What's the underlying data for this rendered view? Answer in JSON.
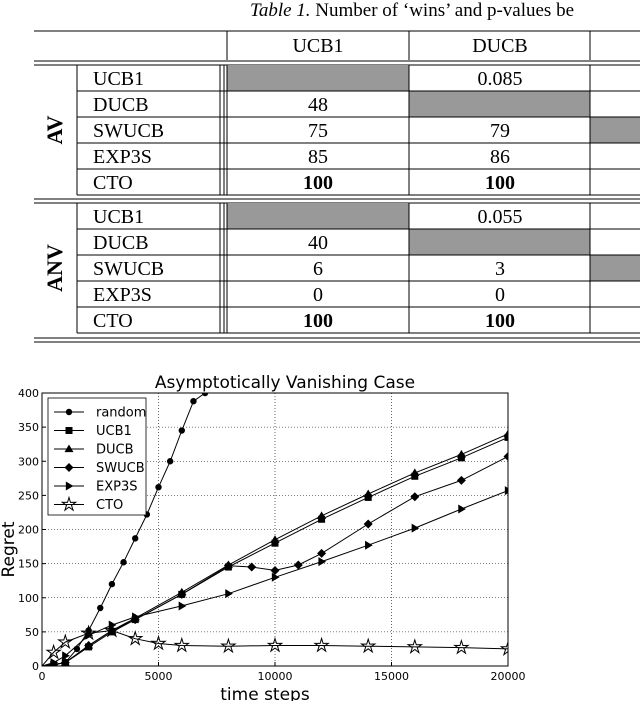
{
  "caption": {
    "label": "Table 1.",
    "text": "Number of ‘wins’ and p-values be"
  },
  "table": {
    "columns": [
      "UCB1",
      "DUCB"
    ],
    "groups": [
      {
        "name": "AV",
        "rows": [
          {
            "label": "UCB1",
            "cells": [
              {
                "shaded": true
              },
              {
                "value": "0.085"
              }
            ],
            "edge_shaded": false
          },
          {
            "label": "DUCB",
            "cells": [
              {
                "value": "48"
              },
              {
                "shaded": true
              }
            ],
            "edge_shaded": false
          },
          {
            "label": "SWUCB",
            "cells": [
              {
                "value": "75"
              },
              {
                "value": "79"
              }
            ],
            "edge_shaded": true
          },
          {
            "label": "EXP3S",
            "cells": [
              {
                "value": "85"
              },
              {
                "value": "86"
              }
            ],
            "edge_shaded": false
          },
          {
            "label": "CTO",
            "cells": [
              {
                "value": "100",
                "bold": true
              },
              {
                "value": "100",
                "bold": true
              }
            ],
            "edge_shaded": false
          }
        ]
      },
      {
        "name": "ANV",
        "rows": [
          {
            "label": "UCB1",
            "cells": [
              {
                "shaded": true
              },
              {
                "value": "0.055"
              }
            ],
            "edge_shaded": false
          },
          {
            "label": "DUCB",
            "cells": [
              {
                "value": "40"
              },
              {
                "shaded": true
              }
            ],
            "edge_shaded": false
          },
          {
            "label": "SWUCB",
            "cells": [
              {
                "value": "6"
              },
              {
                "value": "3"
              }
            ],
            "edge_shaded": true
          },
          {
            "label": "EXP3S",
            "cells": [
              {
                "value": "0"
              },
              {
                "value": "0"
              }
            ],
            "edge_shaded": false
          },
          {
            "label": "CTO",
            "cells": [
              {
                "value": "100",
                "bold": true
              },
              {
                "value": "100",
                "bold": true
              }
            ],
            "edge_shaded": false
          }
        ]
      }
    ],
    "shade_color": "#999999"
  },
  "chart_data": {
    "type": "line",
    "title": "Asymptotically Vanishing Case",
    "xlabel": "time steps",
    "ylabel": "Regret",
    "xlim": [
      0,
      20000
    ],
    "ylim": [
      0,
      400
    ],
    "xticks": [
      0,
      5000,
      10000,
      15000,
      20000
    ],
    "yticks": [
      0,
      50,
      100,
      150,
      200,
      250,
      300,
      350,
      400
    ],
    "grid": true,
    "legend": "top-left",
    "series": [
      {
        "name": "random",
        "marker": "circle",
        "x": [
          0,
          500,
          1000,
          1500,
          2000,
          2500,
          3000,
          3500,
          4000,
          4500,
          5000,
          5500,
          6000,
          6500,
          7000
        ],
        "y": [
          0,
          2,
          5,
          25,
          52,
          85,
          120,
          152,
          187,
          222,
          262,
          300,
          345,
          388,
          400
        ]
      },
      {
        "name": "UCB1",
        "marker": "square",
        "x": [
          0,
          500,
          1000,
          2000,
          3000,
          4000,
          6000,
          8000,
          10000,
          12000,
          14000,
          16000,
          18000,
          20000
        ],
        "y": [
          0,
          2,
          5,
          28,
          50,
          68,
          105,
          145,
          180,
          215,
          247,
          278,
          305,
          335
        ]
      },
      {
        "name": "DUCB",
        "marker": "triangle",
        "x": [
          0,
          500,
          1000,
          2000,
          3000,
          4000,
          6000,
          8000,
          10000,
          12000,
          14000,
          16000,
          18000,
          20000
        ],
        "y": [
          0,
          2,
          5,
          30,
          52,
          70,
          108,
          148,
          185,
          220,
          252,
          283,
          310,
          340
        ]
      },
      {
        "name": "SWUCB",
        "marker": "diamond",
        "x": [
          0,
          500,
          1000,
          2000,
          3000,
          4000,
          6000,
          8000,
          9000,
          10000,
          11000,
          12000,
          14000,
          16000,
          18000,
          20000
        ],
        "y": [
          0,
          2,
          5,
          30,
          52,
          68,
          105,
          147,
          145,
          140,
          148,
          165,
          208,
          248,
          272,
          307
        ]
      },
      {
        "name": "EXP3S",
        "marker": "tri-right",
        "x": [
          0,
          500,
          1000,
          2000,
          3000,
          4000,
          6000,
          8000,
          10000,
          12000,
          14000,
          16000,
          18000,
          20000
        ],
        "y": [
          0,
          5,
          15,
          45,
          60,
          72,
          88,
          106,
          130,
          153,
          177,
          202,
          230,
          257
        ]
      },
      {
        "name": "CTO",
        "marker": "star",
        "x": [
          0,
          500,
          1000,
          2000,
          3000,
          4000,
          5000,
          6000,
          8000,
          10000,
          12000,
          14000,
          16000,
          18000,
          20000
        ],
        "y": [
          0,
          20,
          35,
          48,
          52,
          40,
          33,
          30,
          29,
          30,
          30,
          29,
          28,
          27,
          25
        ]
      }
    ]
  }
}
